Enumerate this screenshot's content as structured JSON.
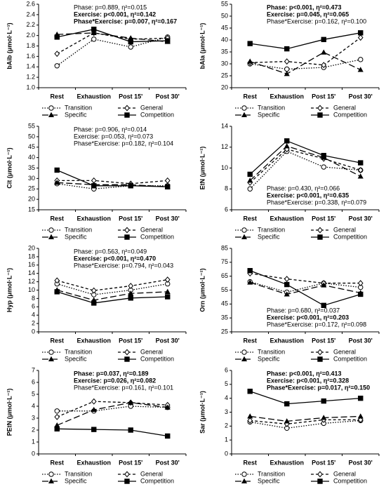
{
  "chart_data": [
    {
      "type": "line",
      "ylabel": "bAib (μmol·L⁻¹)",
      "categories": [
        "Rest",
        "Exhaustion",
        "Post 15'",
        "Post 30'"
      ],
      "ylim": [
        1.0,
        2.6
      ],
      "yticks": [
        {
          "value": 1,
          "label": "1.0"
        },
        1.2,
        1.4,
        1.6,
        1.8,
        {
          "value": 2,
          "label": "2.0"
        },
        2.2,
        2.4,
        2.6
      ],
      "annotation_position": "top",
      "annotations": [
        {
          "text": "Phase: p=0.889, η²=0.015",
          "bold": false
        },
        {
          "text": "Exercise: p<0.001, η²=0.142",
          "bold": true
        },
        {
          "text": "Phase*Exercise: p=0.007, η²=0.167",
          "bold": true
        }
      ],
      "series": [
        {
          "name": "Transition",
          "color": "#000000",
          "dash": "dotted",
          "marker": "circle",
          "values": [
            1.42,
            1.93,
            1.78,
            1.97
          ]
        },
        {
          "name": "General",
          "color": "#000000",
          "dash": "short-dash",
          "marker": "diamond",
          "values": [
            1.65,
            2.05,
            1.93,
            1.95
          ]
        },
        {
          "name": "Specific",
          "color": "#000000",
          "dash": "long-dash",
          "marker": "triangle",
          "values": [
            2.02,
            2.05,
            1.95,
            1.88
          ]
        },
        {
          "name": "Competition",
          "color": "#000000",
          "dash": "solid",
          "marker": "square",
          "values": [
            1.97,
            2.12,
            1.88,
            1.9
          ]
        }
      ]
    },
    {
      "type": "line",
      "ylabel": "bAla (μmol·L⁻¹)",
      "categories": [
        "Rest",
        "Exhaustion",
        "Post 15'",
        "Post 30'"
      ],
      "ylim": [
        20,
        55
      ],
      "yticks": [
        20,
        25,
        30,
        35,
        40,
        45,
        50,
        55
      ],
      "annotation_position": "top",
      "annotations": [
        {
          "text": "Phase: p<0.001, η²=0.473",
          "bold": true
        },
        {
          "text": "Exercise: p=0.045, η²=0.065",
          "bold": true
        },
        {
          "text": "Phase*Exercise: p=0.162, η²=0.100",
          "bold": false
        }
      ],
      "series": [
        {
          "name": "Transition",
          "color": "#000000",
          "dash": "dotted",
          "marker": "circle",
          "values": [
            30,
            27.8,
            28.5,
            31.8
          ]
        },
        {
          "name": "General",
          "color": "#000000",
          "dash": "short-dash",
          "marker": "diamond",
          "values": [
            30.5,
            31,
            29.5,
            41
          ]
        },
        {
          "name": "Specific",
          "color": "#000000",
          "dash": "long-dash",
          "marker": "triangle",
          "values": [
            31,
            25.8,
            34.8,
            27.5
          ]
        },
        {
          "name": "Competition",
          "color": "#000000",
          "dash": "solid",
          "marker": "square",
          "values": [
            38.5,
            36.3,
            40.2,
            43
          ]
        }
      ]
    },
    {
      "type": "line",
      "ylabel": "Cit (μmol·L⁻¹)",
      "categories": [
        "Rest",
        "Exhaustion",
        "Post 15'",
        "Post 30'"
      ],
      "ylim": [
        15,
        55
      ],
      "yticks": [
        15,
        20,
        25,
        30,
        35,
        40,
        45,
        50,
        55
      ],
      "annotation_position": "top",
      "annotations": [
        {
          "text": "Phase: p=0.906, η²=0.014",
          "bold": false
        },
        {
          "text": "Exercise: p=0.053, η²=0.073",
          "bold": false
        },
        {
          "text": "Phase*Exercise: p=0.182, η²=0.104",
          "bold": false
        }
      ],
      "series": [
        {
          "name": "Transition",
          "color": "#000000",
          "dash": "dotted",
          "marker": "circle",
          "values": [
            27.5,
            25,
            26.5,
            26.5
          ]
        },
        {
          "name": "General",
          "color": "#000000",
          "dash": "short-dash",
          "marker": "diamond",
          "values": [
            29,
            29,
            27.5,
            29
          ]
        },
        {
          "name": "Specific",
          "color": "#000000",
          "dash": "long-dash",
          "marker": "triangle",
          "values": [
            28,
            27,
            27,
            26
          ]
        },
        {
          "name": "Competition",
          "color": "#000000",
          "dash": "solid",
          "marker": "square",
          "values": [
            34,
            26.5,
            26.5,
            26
          ]
        }
      ]
    },
    {
      "type": "line",
      "ylabel": "EtN (μmol·L⁻¹)",
      "categories": [
        "Rest",
        "Exhaustion",
        "Post 15'",
        "Post 30'"
      ],
      "ylim": [
        6,
        14
      ],
      "yticks": [
        6,
        8,
        10,
        12,
        14
      ],
      "annotation_position": "bottom",
      "annotations": [
        {
          "text": "Phase: p=0.430, η²=0.066",
          "bold": false
        },
        {
          "text": "Exercise: p<0.001, η²=0.635",
          "bold": true
        },
        {
          "text": "Phase*Exercise: p=0.338, η²=0.079",
          "bold": false
        }
      ],
      "series": [
        {
          "name": "Transition",
          "color": "#000000",
          "dash": "dotted",
          "marker": "circle",
          "values": [
            8,
            11.6,
            10.1,
            9.8
          ]
        },
        {
          "name": "General",
          "color": "#000000",
          "dash": "short-dash",
          "marker": "diamond",
          "values": [
            8.6,
            11.8,
            10.9,
            9.8
          ]
        },
        {
          "name": "Specific",
          "color": "#000000",
          "dash": "long-dash",
          "marker": "triangle",
          "values": [
            8.8,
            12.1,
            11,
            9.2
          ]
        },
        {
          "name": "Competition",
          "color": "#000000",
          "dash": "solid",
          "marker": "square",
          "values": [
            9.4,
            12.6,
            11.2,
            10.5
          ]
        }
      ]
    },
    {
      "type": "line",
      "ylabel": "Hyp (μmol·L⁻¹)",
      "categories": [
        "Rest",
        "Exhaustion",
        "Post 15'",
        "Post 30'"
      ],
      "ylim": [
        0,
        20
      ],
      "yticks": [
        0,
        2,
        4,
        6,
        8,
        10,
        12,
        14,
        16,
        18,
        20
      ],
      "annotation_position": "top",
      "annotations": [
        {
          "text": "Phase: p=0.563, η²=0.049",
          "bold": false
        },
        {
          "text": "Exercise: p<0.001, η²=0.470",
          "bold": true
        },
        {
          "text": "Phase*Exercise: p=0.794, η²=0.043",
          "bold": false
        }
      ],
      "series": [
        {
          "name": "Transition",
          "color": "#000000",
          "dash": "dotted",
          "marker": "circle",
          "values": [
            11.5,
            8.9,
            10,
            11.5
          ]
        },
        {
          "name": "General",
          "color": "#000000",
          "dash": "short-dash",
          "marker": "diamond",
          "values": [
            12.3,
            9.9,
            11,
            12.5
          ]
        },
        {
          "name": "Specific",
          "color": "#000000",
          "dash": "long-dash",
          "marker": "triangle",
          "values": [
            10,
            7.6,
            9.2,
            9.6
          ]
        },
        {
          "name": "Competition",
          "color": "#000000",
          "dash": "solid",
          "marker": "square",
          "values": [
            9.6,
            6.9,
            8.1,
            8.4
          ]
        }
      ]
    },
    {
      "type": "line",
      "ylabel": "Orn (μmol·L⁻¹)",
      "categories": [
        "Rest",
        "Exhaustion",
        "Post 15'",
        "Post 30'"
      ],
      "ylim": [
        25,
        85
      ],
      "yticks": [
        25,
        35,
        45,
        55,
        65,
        75,
        85
      ],
      "annotation_position": "bottom",
      "annotations": [
        {
          "text": "Phase: p=0.680, η²=0.037",
          "bold": false
        },
        {
          "text": "Exercise: p<0.001, η²=0.203",
          "bold": true
        },
        {
          "text": "Phase*Exercise: p=0.172, η²=0.098",
          "bold": false
        }
      ],
      "series": [
        {
          "name": "Transition",
          "color": "#000000",
          "dash": "dotted",
          "marker": "circle",
          "values": [
            61,
            53.5,
            60,
            57
          ]
        },
        {
          "name": "General",
          "color": "#000000",
          "dash": "short-dash",
          "marker": "diamond",
          "values": [
            67,
            63,
            60,
            60
          ]
        },
        {
          "name": "Specific",
          "color": "#000000",
          "dash": "long-dash",
          "marker": "triangle",
          "values": [
            60.5,
            52,
            58.5,
            53
          ]
        },
        {
          "name": "Competition",
          "color": "#000000",
          "dash": "solid",
          "marker": "square",
          "values": [
            69,
            59,
            44,
            52
          ]
        }
      ]
    },
    {
      "type": "line",
      "ylabel": "PEtN (μmol·L⁻¹)",
      "categories": [
        "Rest",
        "Exhaustion",
        "Post 15'",
        "Post 30'"
      ],
      "ylim": [
        0,
        7
      ],
      "yticks": [
        0,
        1,
        2,
        3,
        4,
        5,
        6,
        7
      ],
      "annotation_position": "top",
      "annotations": [
        {
          "text": "Phase: p=0.037, η²=0.189",
          "bold": true
        },
        {
          "text": "Exercise: p=0.026, η²=0.082",
          "bold": true
        },
        {
          "text": "Phase*Exercise: p=0.161, η²=0.101",
          "bold": false
        }
      ],
      "series": [
        {
          "name": "Transition",
          "color": "#000000",
          "dash": "dotted",
          "marker": "circle",
          "values": [
            3.6,
            3.6,
            4,
            3.9
          ]
        },
        {
          "name": "General",
          "color": "#000000",
          "dash": "short-dash",
          "marker": "diamond",
          "values": [
            3.1,
            4.4,
            4.3,
            4.1
          ]
        },
        {
          "name": "Specific",
          "color": "#000000",
          "dash": "long-dash",
          "marker": "triangle",
          "values": [
            2.4,
            3.7,
            4.3,
            3.9
          ]
        },
        {
          "name": "Competition",
          "color": "#000000",
          "dash": "solid",
          "marker": "square",
          "values": [
            2.1,
            2.05,
            2,
            1.5
          ]
        }
      ]
    },
    {
      "type": "line",
      "ylabel": "Sar (μmol·L⁻¹)",
      "categories": [
        "Rest",
        "Exhaustion",
        "Post 15'",
        "Post 30'"
      ],
      "ylim": [
        0,
        6
      ],
      "yticks": [
        0,
        1,
        2,
        3,
        4,
        5,
        6
      ],
      "annotation_position": "top",
      "annotations": [
        {
          "text": "Phase: p<0.001, η²=0.413",
          "bold": true
        },
        {
          "text": "Exercise: p<0.001, η²=0.328",
          "bold": true
        },
        {
          "text": "Phase*Exercise: p=0.017, η²=0.150",
          "bold": true
        }
      ],
      "series": [
        {
          "name": "Transition",
          "color": "#000000",
          "dash": "dotted",
          "marker": "circle",
          "values": [
            2.3,
            1.85,
            2.2,
            2.4
          ]
        },
        {
          "name": "General",
          "color": "#000000",
          "dash": "short-dash",
          "marker": "diamond",
          "values": [
            2.4,
            2.15,
            2.45,
            2.45
          ]
        },
        {
          "name": "Specific",
          "color": "#000000",
          "dash": "long-dash",
          "marker": "triangle",
          "values": [
            2.7,
            2.35,
            2.6,
            2.7
          ]
        },
        {
          "name": "Competition",
          "color": "#000000",
          "dash": "solid",
          "marker": "square",
          "values": [
            4.5,
            3.6,
            3.8,
            4.0
          ]
        }
      ]
    }
  ]
}
